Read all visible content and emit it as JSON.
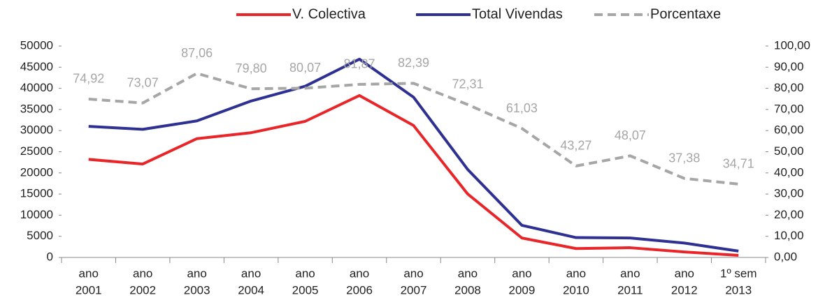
{
  "chart_data": {
    "type": "line",
    "categories": [
      [
        "ano",
        "2001"
      ],
      [
        "ano",
        "2002"
      ],
      [
        "ano",
        "2003"
      ],
      [
        "ano",
        "2004"
      ],
      [
        "ano",
        "2005"
      ],
      [
        "ano",
        "2006"
      ],
      [
        "ano",
        "2007"
      ],
      [
        "ano",
        "2008"
      ],
      [
        "ano",
        "2009"
      ],
      [
        "ano",
        "2010"
      ],
      [
        "ano",
        "2011"
      ],
      [
        "ano",
        "2012"
      ],
      [
        "1º sem",
        "2013"
      ]
    ],
    "series": [
      {
        "name": "V. Colectiva",
        "color": "#e8262a",
        "values": [
          23200,
          22100,
          28100,
          29500,
          32200,
          38300,
          31200,
          15000,
          4600,
          2100,
          2300,
          1300,
          500
        ]
      },
      {
        "name": "Total Vivendas",
        "color": "#2e3192",
        "values": [
          31000,
          30300,
          32300,
          37000,
          40500,
          46900,
          37900,
          20800,
          7600,
          4700,
          4600,
          3400,
          1500
        ]
      },
      {
        "name": "Porcentaxe",
        "color": "#a6a6a6",
        "axis": "y2",
        "dashed": true,
        "values": [
          74.92,
          73.07,
          87.06,
          79.8,
          80.07,
          81.87,
          82.39,
          72.31,
          61.03,
          43.27,
          48.07,
          37.38,
          34.71
        ],
        "value_labels": [
          "74,92",
          "73,07",
          "87,06",
          "79,80",
          "80,07",
          "81,87",
          "82,39",
          "72,31",
          "61,03",
          "43,27",
          "48,07",
          "37,38",
          "34,71"
        ]
      }
    ],
    "ylim": [
      0,
      50000
    ],
    "yticks": [
      0,
      5000,
      10000,
      15000,
      20000,
      25000,
      30000,
      35000,
      40000,
      45000,
      50000
    ],
    "y2lim": [
      0,
      100
    ],
    "y2ticks": [
      {
        "value": 0,
        "label": "0,00"
      },
      {
        "value": 10,
        "label": "10,00"
      },
      {
        "value": 20,
        "label": "20,00"
      },
      {
        "value": 30,
        "label": "30,00"
      },
      {
        "value": 40,
        "label": "40,00"
      },
      {
        "value": 50,
        "label": "50,00"
      },
      {
        "value": 60,
        "label": "60,00"
      },
      {
        "value": 70,
        "label": "70,00"
      },
      {
        "value": 80,
        "label": "80,00"
      },
      {
        "value": 90,
        "label": "90,00"
      },
      {
        "value": 100,
        "label": "100,00"
      }
    ],
    "legend": "top",
    "grid": false
  }
}
